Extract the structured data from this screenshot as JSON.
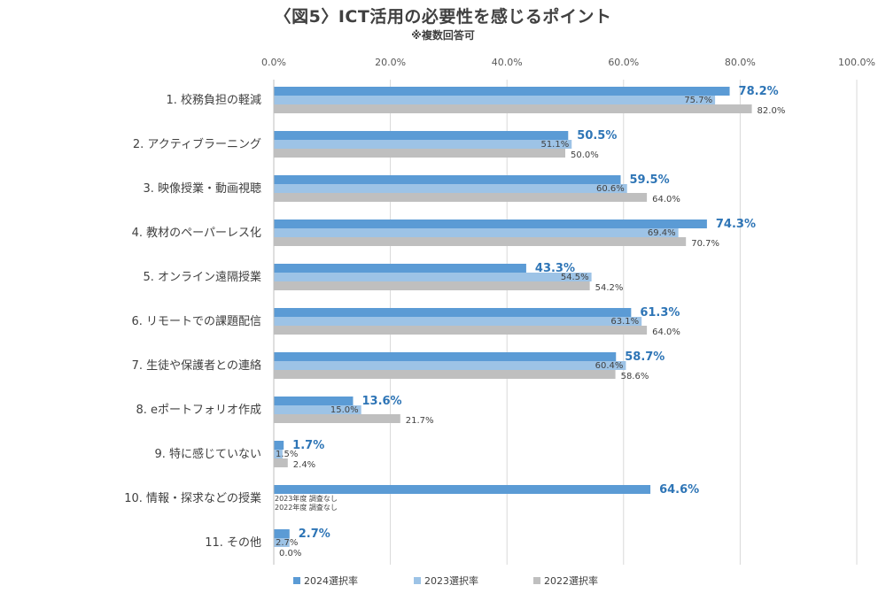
{
  "chart_data": {
    "type": "bar",
    "orientation": "horizontal",
    "title": "〈図5〉ICT活用の必要性を感じるポイント",
    "subtitle": "※複数回答可",
    "xlim": [
      0,
      100
    ],
    "xticks": [
      "0.0%",
      "20.0%",
      "40.0%",
      "60.0%",
      "80.0%",
      "100.0%"
    ],
    "grid": true,
    "legend_position": "bottom",
    "categories": [
      "1. 校務負担の軽減",
      "2. アクティブラーニング",
      "3. 映像授業・動画視聴",
      "4. 教材のペーパーレス化",
      "5. オンライン遠隔授業",
      "6. リモートでの課題配信",
      "7. 生徒や保護者との連絡",
      "8. eポートフォリオ作成",
      "9. 特に感じていない",
      "10. 情報・探求などの授業",
      "11. その他"
    ],
    "series": [
      {
        "name": "2024選択率",
        "color": "#5b9bd5",
        "values": [
          78.2,
          50.5,
          59.5,
          74.3,
          43.3,
          61.3,
          58.7,
          13.6,
          1.7,
          64.6,
          2.7
        ],
        "labels": [
          "78.2%",
          "50.5%",
          "59.5%",
          "74.3%",
          "43.3%",
          "61.3%",
          "58.7%",
          "13.6%",
          "1.7%",
          "64.6%",
          "2.7%"
        ]
      },
      {
        "name": "2023選択率",
        "color": "#9dc3e6",
        "values": [
          75.7,
          51.1,
          60.6,
          69.4,
          54.5,
          63.1,
          60.4,
          15.0,
          1.5,
          null,
          2.7
        ],
        "labels": [
          "75.7%",
          "51.1%",
          "60.6%",
          "69.4%",
          "54.5%",
          "63.1%",
          "60.4%",
          "15.0%",
          "1.5%",
          "2023年度 調査なし",
          "2.7%"
        ]
      },
      {
        "name": "2022選択率",
        "color": "#bfbfbf",
        "values": [
          82.0,
          50.0,
          64.0,
          70.7,
          54.2,
          64.0,
          58.6,
          21.7,
          2.4,
          null,
          0.0
        ],
        "labels": [
          "82.0%",
          "50.0%",
          "64.0%",
          "70.7%",
          "54.2%",
          "64.0%",
          "58.6%",
          "21.7%",
          "2.4%",
          "2022年度 調査なし",
          "0.0%"
        ]
      }
    ]
  }
}
